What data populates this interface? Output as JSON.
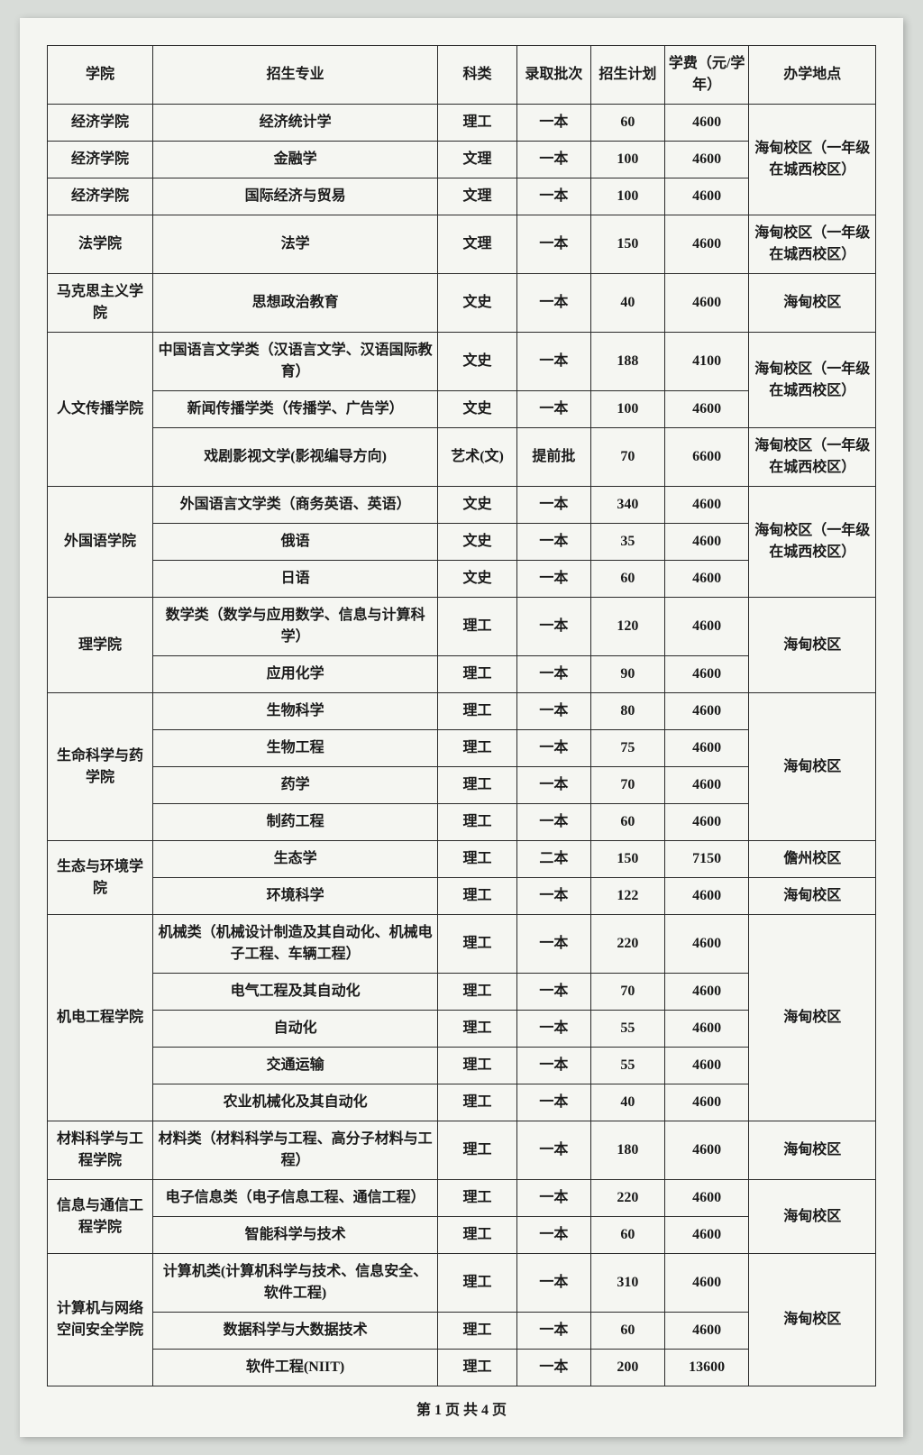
{
  "header": {
    "college": "学院",
    "major": "招生专业",
    "category": "科类",
    "batch": "录取批次",
    "plan": "招生计划",
    "fee": "学费（元/学年）",
    "location": "办学地点"
  },
  "footer": "第 1 页  共 4 页",
  "groups": [
    {
      "college": "经济学院",
      "location": "海甸校区（一年级在城西校区）",
      "rows": [
        {
          "major": "经济统计学",
          "cat": "理工",
          "batch": "一本",
          "plan": 60,
          "fee": 4600,
          "show_college": true
        },
        {
          "major": "金融学",
          "cat": "文理",
          "batch": "一本",
          "plan": 100,
          "fee": 4600,
          "show_college": true
        },
        {
          "major": "国际经济与贸易",
          "cat": "文理",
          "batch": "一本",
          "plan": 100,
          "fee": 4600,
          "show_college": true
        }
      ]
    },
    {
      "college": "法学院",
      "location": "海甸校区（一年级在城西校区）",
      "rows": [
        {
          "major": "法学",
          "cat": "文理",
          "batch": "一本",
          "plan": 150,
          "fee": 4600
        }
      ]
    },
    {
      "college": "马克思主义学院",
      "location": "海甸校区",
      "rows": [
        {
          "major": "思想政治教育",
          "cat": "文史",
          "batch": "一本",
          "plan": 40,
          "fee": 4600
        }
      ]
    },
    {
      "college": "人文传播学院",
      "rows": [
        {
          "major": "中国语言文学类（汉语言文学、汉语国际教育）",
          "cat": "文史",
          "batch": "一本",
          "plan": 188,
          "fee": 4100,
          "loc": "海甸校区（一年级在城西校区）",
          "loc_rowspan": 2
        },
        {
          "major": "新闻传播学类（传播学、广告学）",
          "cat": "文史",
          "batch": "一本",
          "plan": 100,
          "fee": 4600
        },
        {
          "major": "戏剧影视文学(影视编导方向)",
          "cat": "艺术(文)",
          "batch": "提前批",
          "plan": 70,
          "fee": 6600,
          "loc": "海甸校区（一年级在城西校区）",
          "loc_rowspan": 1
        }
      ]
    },
    {
      "college": "外国语学院",
      "location": "海甸校区（一年级在城西校区）",
      "rows": [
        {
          "major": "外国语言文学类（商务英语、英语）",
          "cat": "文史",
          "batch": "一本",
          "plan": 340,
          "fee": 4600
        },
        {
          "major": "俄语",
          "cat": "文史",
          "batch": "一本",
          "plan": 35,
          "fee": 4600
        },
        {
          "major": "日语",
          "cat": "文史",
          "batch": "一本",
          "plan": 60,
          "fee": 4600
        }
      ]
    },
    {
      "college": "理学院",
      "location": "海甸校区",
      "rows": [
        {
          "major": "数学类（数学与应用数学、信息与计算科学）",
          "cat": "理工",
          "batch": "一本",
          "plan": 120,
          "fee": 4600
        },
        {
          "major": "应用化学",
          "cat": "理工",
          "batch": "一本",
          "plan": 90,
          "fee": 4600
        }
      ]
    },
    {
      "college": "生命科学与药学院",
      "location": "海甸校区",
      "rows": [
        {
          "major": "生物科学",
          "cat": "理工",
          "batch": "一本",
          "plan": 80,
          "fee": 4600
        },
        {
          "major": "生物工程",
          "cat": "理工",
          "batch": "一本",
          "plan": 75,
          "fee": 4600
        },
        {
          "major": "药学",
          "cat": "理工",
          "batch": "一本",
          "plan": 70,
          "fee": 4600
        },
        {
          "major": "制药工程",
          "cat": "理工",
          "batch": "一本",
          "plan": 60,
          "fee": 4600
        }
      ]
    },
    {
      "college": "生态与环境学院",
      "rows": [
        {
          "major": "生态学",
          "cat": "理工",
          "batch": "二本",
          "plan": 150,
          "fee": 7150,
          "loc": "儋州校区",
          "loc_rowspan": 1
        },
        {
          "major": "环境科学",
          "cat": "理工",
          "batch": "一本",
          "plan": 122,
          "fee": 4600,
          "loc": "海甸校区",
          "loc_rowspan": 1
        }
      ]
    },
    {
      "college": "机电工程学院",
      "location": "海甸校区",
      "rows": [
        {
          "major": "机械类（机械设计制造及其自动化、机械电子工程、车辆工程）",
          "cat": "理工",
          "batch": "一本",
          "plan": 220,
          "fee": 4600
        },
        {
          "major": "电气工程及其自动化",
          "cat": "理工",
          "batch": "一本",
          "plan": 70,
          "fee": 4600
        },
        {
          "major": "自动化",
          "cat": "理工",
          "batch": "一本",
          "plan": 55,
          "fee": 4600
        },
        {
          "major": "交通运输",
          "cat": "理工",
          "batch": "一本",
          "plan": 55,
          "fee": 4600
        },
        {
          "major": "农业机械化及其自动化",
          "cat": "理工",
          "batch": "一本",
          "plan": 40,
          "fee": 4600
        }
      ]
    },
    {
      "college": "材料科学与工程学院",
      "location": "海甸校区",
      "rows": [
        {
          "major": "材料类（材料科学与工程、高分子材料与工程）",
          "cat": "理工",
          "batch": "一本",
          "plan": 180,
          "fee": 4600
        }
      ]
    },
    {
      "college": "信息与通信工程学院",
      "location": "海甸校区",
      "rows": [
        {
          "major": "电子信息类（电子信息工程、通信工程）",
          "cat": "理工",
          "batch": "一本",
          "plan": 220,
          "fee": 4600
        },
        {
          "major": "智能科学与技术",
          "cat": "理工",
          "batch": "一本",
          "plan": 60,
          "fee": 4600
        }
      ]
    },
    {
      "college": "计算机与网络空间安全学院",
      "location": "海甸校区",
      "rows": [
        {
          "major": "计算机类(计算机科学与技术、信息安全、软件工程)",
          "cat": "理工",
          "batch": "一本",
          "plan": 310,
          "fee": 4600
        },
        {
          "major": "数据科学与大数据技术",
          "cat": "理工",
          "batch": "一本",
          "plan": 60,
          "fee": 4600
        },
        {
          "major": "软件工程(NIIT)",
          "cat": "理工",
          "batch": "一本",
          "plan": 200,
          "fee": 13600
        }
      ]
    }
  ]
}
